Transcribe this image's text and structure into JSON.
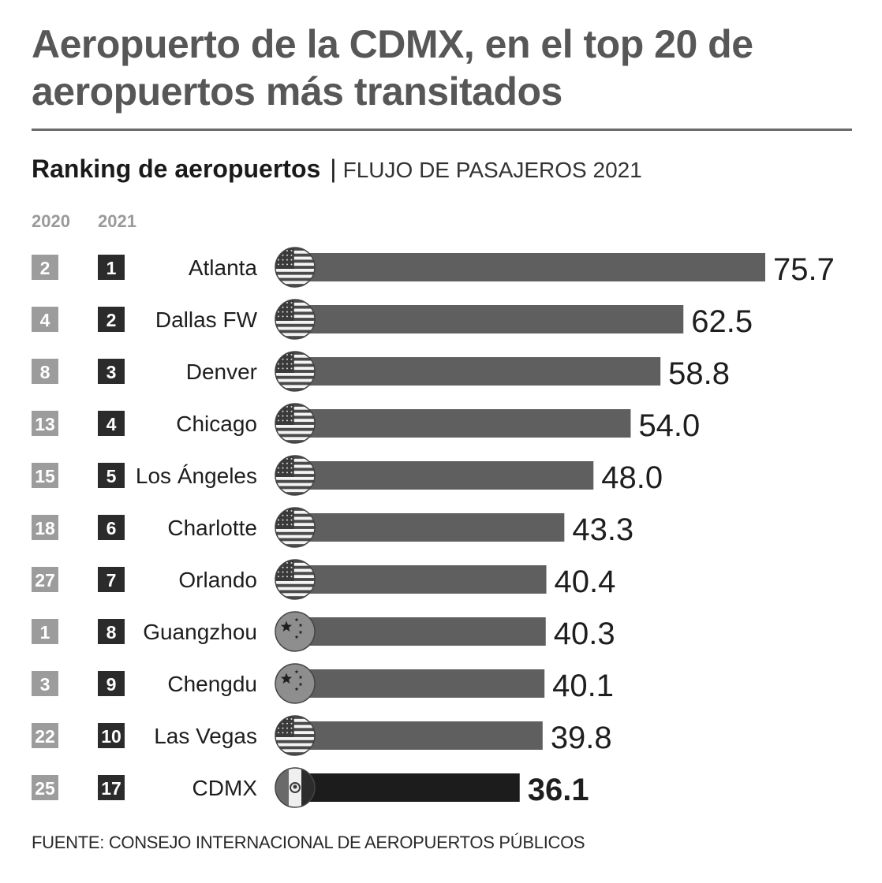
{
  "title": "Aeropuerto de la CDMX, en el top 20 de aeropuertos más transitados",
  "subtitle": {
    "bold": "Ranking de aeropuertos",
    "separator": "|",
    "light": "FLUJO DE PASAJEROS 2021"
  },
  "columns": {
    "prev": "2020",
    "curr": "2021"
  },
  "source": "FUENTE: CONSEJO INTERNACIONAL DE AEROPUERTOS PÚBLICOS",
  "colors": {
    "bar": "#5f5f5f",
    "highlight_bar": "#1c1c1c",
    "rank_prev_bg": "#9c9c9c",
    "rank_curr_bg": "#2b2b2b"
  },
  "chart_data": {
    "type": "bar",
    "orientation": "horizontal",
    "title": "Ranking de aeropuertos | FLUJO DE PASAJEROS 2021",
    "categories": [
      "Atlanta",
      "Dallas FW",
      "Denver",
      "Chicago",
      "Los Ángeles",
      "Charlotte",
      "Orlando",
      "Guangzhou",
      "Chengdu",
      "Las Vegas",
      "CDMX"
    ],
    "values": [
      75.7,
      62.5,
      58.8,
      54.0,
      48.0,
      43.3,
      40.4,
      40.3,
      40.1,
      39.8,
      36.1
    ],
    "value_labels": [
      "75.7",
      "62.5",
      "58.8",
      "54.0",
      "48.0",
      "43.3",
      "40.4",
      "40.3",
      "40.1",
      "39.8",
      "36.1"
    ],
    "rank_2020": [
      "2",
      "4",
      "8",
      "13",
      "15",
      "18",
      "27",
      "1",
      "3",
      "22",
      "25"
    ],
    "rank_2021": [
      "1",
      "2",
      "3",
      "4",
      "5",
      "6",
      "7",
      "8",
      "9",
      "10",
      "17"
    ],
    "flags": [
      "us-flag-icon",
      "us-flag-icon",
      "us-flag-icon",
      "us-flag-icon",
      "us-flag-icon",
      "us-flag-icon",
      "us-flag-icon",
      "china-flag-icon",
      "china-flag-icon",
      "us-flag-icon",
      "mexico-flag-icon"
    ],
    "highlight": "CDMX",
    "xlim": [
      0,
      75.7
    ],
    "grid": false,
    "legend": "none"
  }
}
